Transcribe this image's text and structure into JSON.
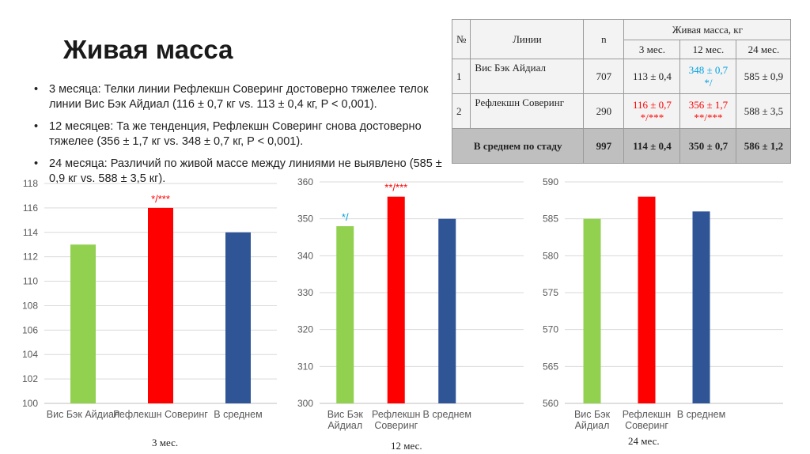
{
  "slide": {
    "title": "Живая масса",
    "bullets": [
      "3 месяца: Телки линии Рефлекшн Соверинг достоверно тяжелее телок линии Вис Бэк Айдиал (116 ± 0,7 кг vs. 113 ± 0,4 кг, P < 0,001).",
      "12 месяцев: Та же тенденция, Рефлекшн Соверинг снова достоверно тяжелее (356 ± 1,7 кг vs. 348 ± 0,7 кг, P < 0,001).",
      " 24 месяца: Различий по живой массе между линиями не выявлено (585 ± 0,9 кг vs. 588 ± 3,5 кг)."
    ],
    "bullet_symbol": "•"
  },
  "table": {
    "headers": {
      "num": "№",
      "line": "Линии",
      "n": "n",
      "group": "Живая масса, кг",
      "m3": "3 мес.",
      "m12": "12 мес.",
      "m24": "24 мес."
    },
    "rows": [
      {
        "num": "1",
        "line": "Вис Бэк Айдиал",
        "n": "707",
        "m3": "113 ± 0,4",
        "m3_sig": "",
        "m12": "348 ± 0,7",
        "m12_sig": "*/",
        "m24": "585 ± 0,9",
        "m24_sig": ""
      },
      {
        "num": "2",
        "line": "Рефлекшн Соверинг",
        "n": "290",
        "m3": "116 ± 0,7",
        "m3_sig": "*/***",
        "m12": "356 ± 1,7",
        "m12_sig": "**/***",
        "m24": "588 ± 3,5",
        "m24_sig": ""
      }
    ],
    "average": {
      "label": "В среднем по стаду",
      "n": "997",
      "m3": "114 ± 0,4",
      "m12": "350 ± 0,7",
      "m24": "586 ± 1,2"
    }
  },
  "colors": {
    "green": "#92d050",
    "red": "#ff0000",
    "blue": "#2f5597",
    "sig_red": "#ff0000",
    "sig_blue": "#00a0e0",
    "grid": "#d9d9d9"
  },
  "chart_data": [
    {
      "type": "bar",
      "title": "",
      "caption": "3 мес.",
      "categories": [
        "Вис Бэк  Айдиал",
        "Рефлекшн Соверинг",
        "В среднем"
      ],
      "values": [
        113,
        116,
        114
      ],
      "annotations": [
        "",
        "*/***",
        ""
      ],
      "ylim": [
        100,
        118
      ],
      "yticks": [
        100,
        102,
        104,
        106,
        108,
        110,
        112,
        114,
        116,
        118
      ],
      "grid": true
    },
    {
      "type": "bar",
      "title": "",
      "caption": "12 мес.",
      "categories": [
        "Вис Бэк Айдиал",
        "Рефлекшн Соверинг",
        "В среднем"
      ],
      "values": [
        348,
        356,
        350
      ],
      "annotations": [
        "*/",
        "**/***",
        ""
      ],
      "ylim": [
        300,
        360
      ],
      "yticks": [
        300,
        310,
        320,
        330,
        340,
        350,
        360
      ],
      "grid": true
    },
    {
      "type": "bar",
      "title": "",
      "caption": "24 мес.",
      "categories": [
        "Вис Бэк Айдиал",
        "Рефлекшн Соверинг",
        "В среднем"
      ],
      "values": [
        585,
        588,
        586
      ],
      "annotations": [
        "",
        "",
        ""
      ],
      "ylim": [
        560,
        590
      ],
      "yticks": [
        560,
        565,
        570,
        575,
        580,
        585,
        590
      ],
      "grid": true
    }
  ]
}
